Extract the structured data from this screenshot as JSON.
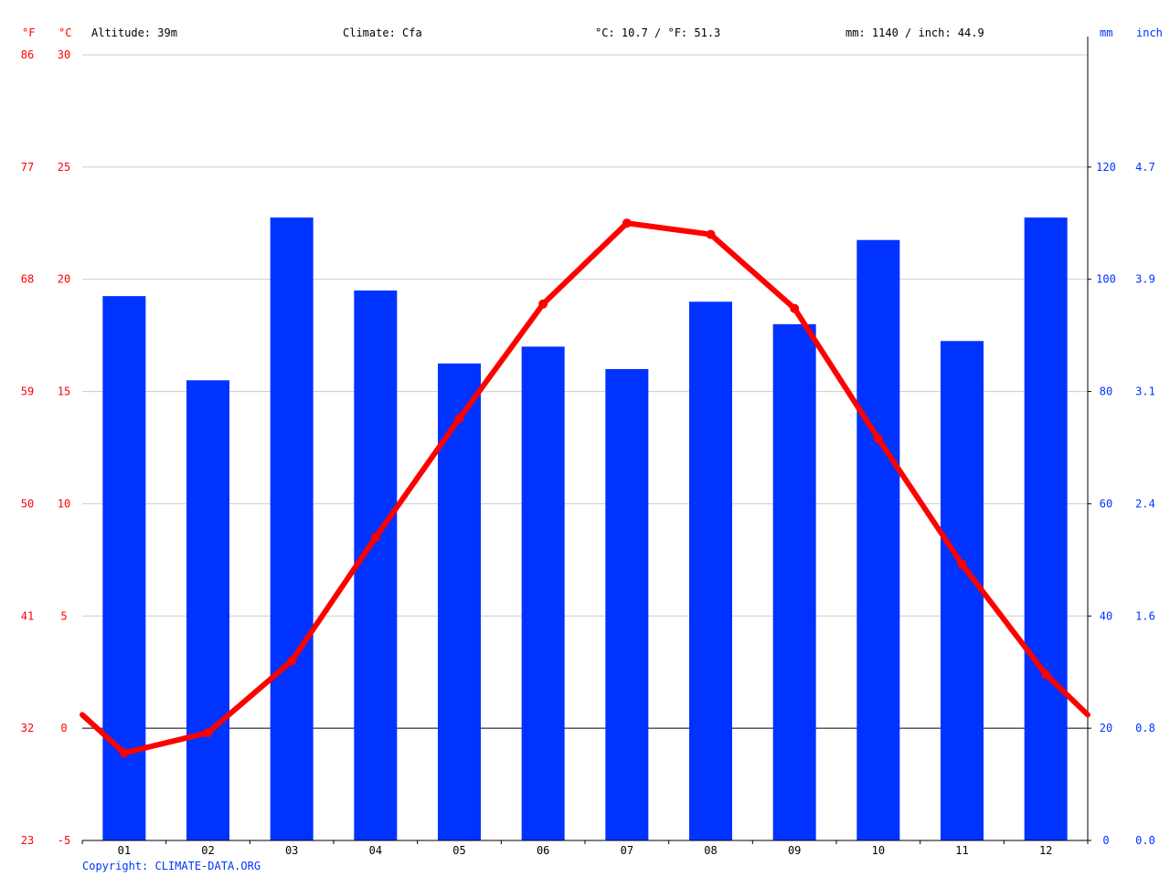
{
  "header": {
    "f_unit": "°F",
    "c_unit": "°C",
    "altitude": "Altitude: 39m",
    "climate": "Climate: Cfa",
    "temp_avg": "°C: 10.7 / °F: 51.3",
    "precip_total": "mm: 1140 / inch: 44.9",
    "mm_unit": "mm",
    "inch_unit": "inch"
  },
  "copyright": "Copyright: CLIMATE-DATA.ORG",
  "colors": {
    "temperature": "#ff0000",
    "precipitation": "#0033ff",
    "grid": "#cccccc",
    "axis": "#000000"
  },
  "chart_data": {
    "type": "bar",
    "categories": [
      "01",
      "02",
      "03",
      "04",
      "05",
      "06",
      "07",
      "08",
      "09",
      "10",
      "11",
      "12"
    ],
    "series": [
      {
        "type": "bar",
        "axis": "right",
        "unit": "mm",
        "values": [
          97,
          82,
          111,
          98,
          85,
          88,
          84,
          96,
          92,
          107,
          89,
          111
        ]
      },
      {
        "type": "line",
        "axis": "left",
        "unit": "°C",
        "values": [
          -1.1,
          -0.2,
          3.0,
          8.5,
          13.8,
          18.9,
          22.5,
          22.0,
          18.7,
          12.9,
          7.3,
          2.4
        ]
      }
    ],
    "line_edges": {
      "start": 0.6,
      "end": 0.6
    },
    "axes": {
      "left_c": {
        "ticks": [
          "30",
          "25",
          "20",
          "15",
          "10",
          "5",
          "0",
          "-5"
        ],
        "range": [
          -5,
          30
        ]
      },
      "left_f": {
        "ticks": [
          "86",
          "77",
          "68",
          "59",
          "50",
          "41",
          "32",
          "23"
        ]
      },
      "right_mm": {
        "ticks": [
          "120",
          "100",
          "80",
          "60",
          "40",
          "20",
          "0"
        ],
        "range": [
          0,
          140
        ]
      },
      "right_inch": {
        "ticks": [
          "4.7",
          "3.9",
          "3.1",
          "2.4",
          "1.6",
          "0.8",
          "0.0"
        ]
      }
    },
    "grid": true
  }
}
